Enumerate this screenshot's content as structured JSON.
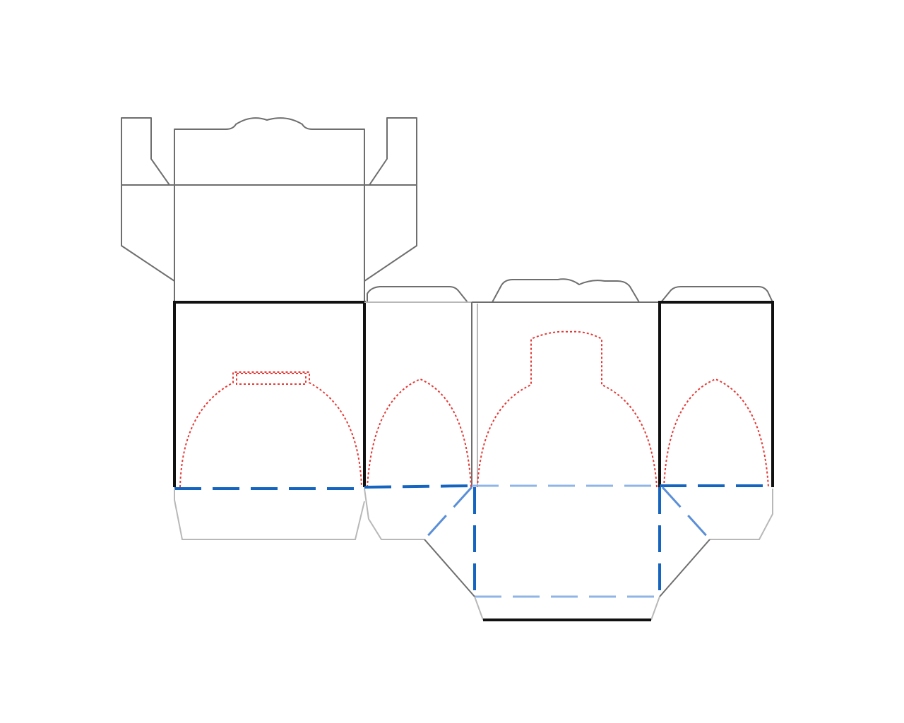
{
  "diagram": {
    "kind": "box dieline",
    "colors": {
      "background": "#ffffff",
      "cut_line": "#6e6e6e",
      "cut_line_light": "#b8b8b8",
      "panel_edge": "#111111",
      "fold_line": "#1565c0",
      "fold_line_light": "#8fb4e6",
      "window_outline": "#e53935"
    }
  }
}
